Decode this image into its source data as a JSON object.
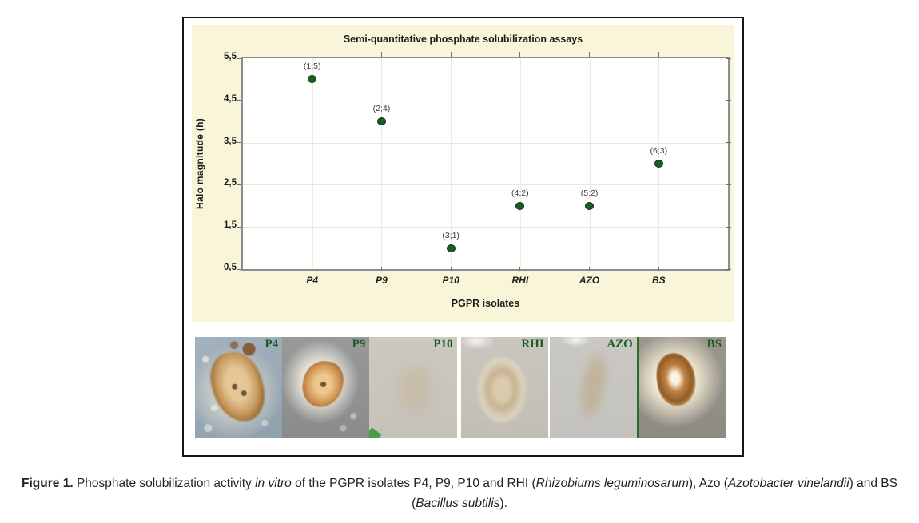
{
  "chart_data": {
    "type": "scatter",
    "title": "Semi-quantitative phosphate solubilization assays",
    "xlabel": "PGPR isolates",
    "ylabel": "Halo magnitude (h)",
    "categories": [
      "P4",
      "P9",
      "P10",
      "RHI",
      "AZO",
      "BS"
    ],
    "values": [
      5,
      4,
      1,
      2,
      2,
      3
    ],
    "point_labels": [
      "(1;5)",
      "(2;4)",
      "(3;1)",
      "(4;2)",
      "(5;2)",
      "(6;3)"
    ],
    "ylim": [
      0.5,
      5.5
    ],
    "ytick_labels": [
      "5,5",
      "4,5",
      "3,5",
      "2,5",
      "1,5",
      "0,5"
    ],
    "grid": true,
    "legend": "none",
    "marker_color": "#1a5c22",
    "panel_bg": "#f8f5d8"
  },
  "photos": {
    "labels": [
      "P4",
      "P9",
      "P10",
      "RHI",
      "AZO",
      "BS"
    ],
    "label_color": "#1d5a26"
  },
  "caption": {
    "parts": [
      {
        "text": "Figure 1.",
        "style": "bold"
      },
      {
        "text": " Phosphate solubilization activity ",
        "style": "normal"
      },
      {
        "text": "in vitro",
        "style": "italic"
      },
      {
        "text": " of the PGPR isolates P4, P9, P10 and RHI (",
        "style": "normal"
      },
      {
        "text": "Rhizobiums leguminosarum",
        "style": "italic"
      },
      {
        "text": "), Azo (",
        "style": "normal"
      },
      {
        "text": "Azotobacter vinelandii",
        "style": "italic"
      },
      {
        "text": ") and BS (",
        "style": "normal"
      },
      {
        "text": "Bacillus subtilis",
        "style": "italic"
      },
      {
        "text": ").",
        "style": "normal"
      }
    ]
  }
}
